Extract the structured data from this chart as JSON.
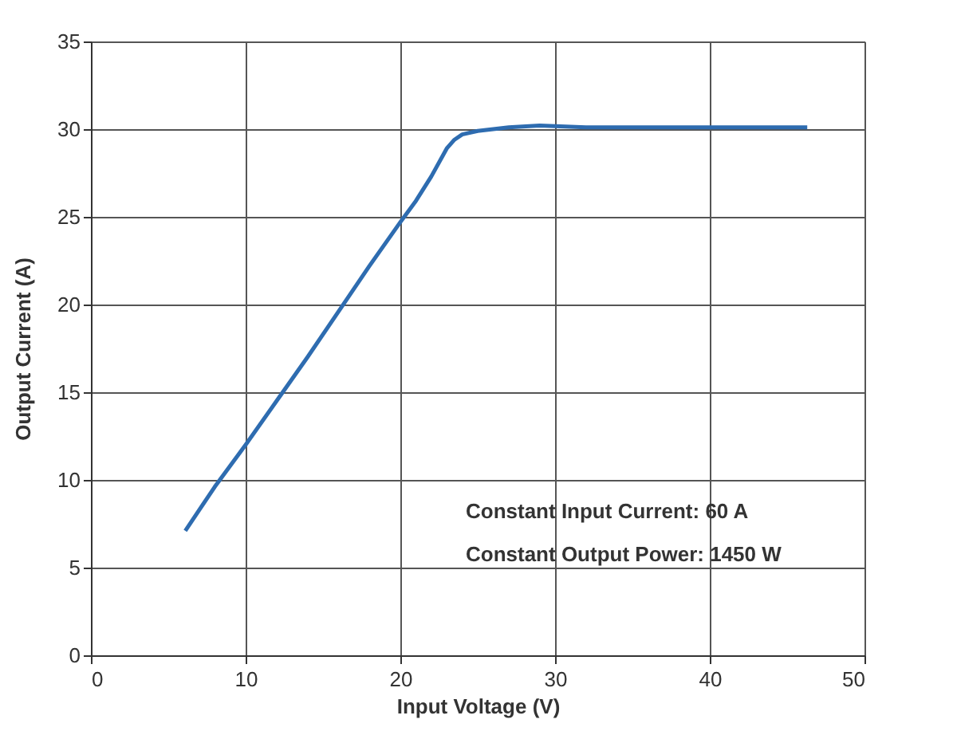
{
  "chart_data": {
    "type": "line",
    "xlabel": "Input Voltage (V)",
    "ylabel": "Output Current (A)",
    "x": [
      6.1,
      8,
      10,
      12,
      14,
      16,
      18,
      20,
      21,
      22,
      23,
      23.5,
      24,
      25,
      26,
      27,
      29,
      32,
      36,
      40,
      46.3
    ],
    "series": [
      {
        "color": "#2e6cb0",
        "values": [
          7.1,
          9.6,
          12,
          14.5,
          17,
          19.6,
          22.2,
          24.7,
          25.9,
          27.3,
          28.9,
          29.4,
          29.7,
          29.9,
          30.0,
          30.1,
          30.2,
          30.1,
          30.1,
          30.1,
          30.1
        ]
      }
    ],
    "xlim": [
      0,
      50
    ],
    "xticks": [
      0,
      10,
      20,
      30,
      40,
      50
    ],
    "ylim": [
      0,
      35
    ],
    "yticks": [
      0,
      5,
      10,
      15,
      20,
      25,
      30,
      35
    ],
    "grid": true,
    "marker": "none",
    "line_style": "solid",
    "annotations": [
      "Constant Input Current: 60 A",
      "Constant Output Power: 1450 W"
    ]
  }
}
